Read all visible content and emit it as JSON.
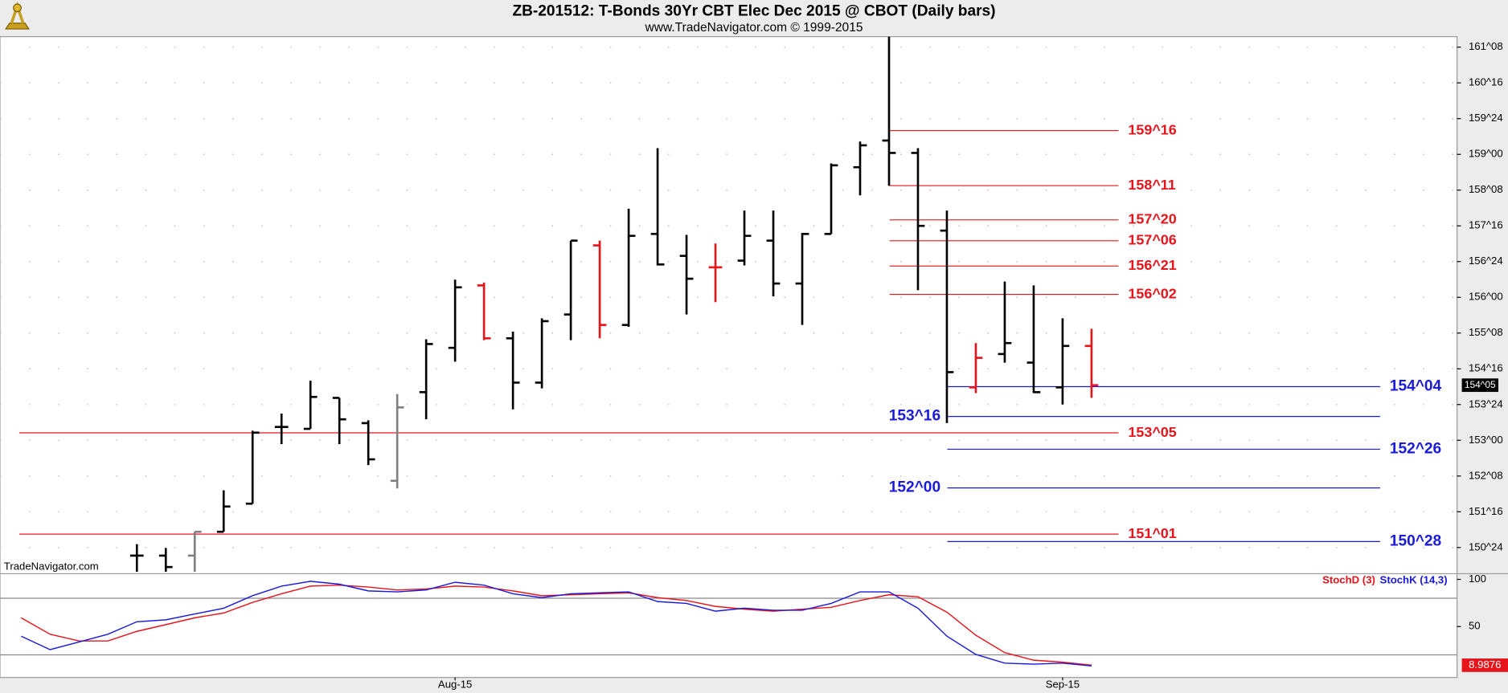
{
  "chart_data": [
    {
      "type": "ohlc",
      "title": "ZB-201512:  T-Bonds 30Yr CBT Elec Dec 2015 @ CBOT  (Daily bars)",
      "subtitle": "www.TradeNavigator.com © 1999-2015",
      "watermark": "TradeNavigator.com",
      "categories": [
        null,
        null,
        null,
        null,
        null,
        null,
        null,
        null,
        null,
        null,
        null,
        null,
        null,
        null,
        null,
        "Aug-15",
        null,
        null,
        null,
        null,
        null,
        null,
        null,
        null,
        null,
        null,
        null,
        null,
        null,
        null,
        null,
        null,
        null,
        null,
        null,
        null,
        "Sep-15",
        null
      ],
      "open": [
        null,
        null,
        null,
        null,
        150.58,
        150.58,
        150.58,
        151.08,
        151.67,
        153.28,
        153.24,
        153.89,
        153.36,
        152.15,
        154.01,
        154.94,
        156.25,
        155.14,
        154.21,
        155.64,
        157.09,
        155.42,
        157.33,
        156.87,
        156.63,
        156.77,
        157.19,
        156.29,
        157.33,
        158.73,
        159.29,
        159.03,
        157.4,
        154.11,
        154.81,
        154.63,
        154.11,
        154.98
      ],
      "high": [
        null,
        null,
        null,
        null,
        150.82,
        150.74,
        151.08,
        151.95,
        153.2,
        153.56,
        154.25,
        153.89,
        153.42,
        153.97,
        155.12,
        156.37,
        156.31,
        155.28,
        155.56,
        157.19,
        157.19,
        157.86,
        159.13,
        157.31,
        157.13,
        157.82,
        157.82,
        157.35,
        158.81,
        159.27,
        161.47,
        159.13,
        157.82,
        155.04,
        156.33,
        156.25,
        155.56,
        155.34
      ],
      "low": [
        null,
        null,
        null,
        null,
        150.24,
        150.24,
        150.24,
        151.08,
        151.67,
        152.92,
        153.24,
        152.92,
        152.48,
        151.99,
        153.44,
        154.65,
        155.1,
        153.65,
        154.09,
        155.1,
        155.14,
        155.38,
        156.67,
        155.64,
        155.9,
        156.67,
        156.02,
        155.42,
        157.33,
        158.14,
        158.34,
        156.15,
        153.36,
        153.99,
        154.63,
        153.99,
        153.75,
        153.89
      ],
      "close": [
        null,
        null,
        null,
        null,
        150.58,
        150.34,
        151.08,
        151.61,
        153.16,
        153.28,
        153.91,
        153.44,
        152.6,
        153.69,
        155.02,
        156.21,
        155.14,
        154.21,
        155.5,
        157.19,
        155.42,
        157.29,
        156.69,
        156.39,
        156.63,
        157.29,
        156.29,
        157.33,
        158.77,
        159.19,
        159.03,
        157.5,
        154.43,
        154.73,
        155.04,
        154.01,
        154.98,
        154.15625
      ],
      "bar_colors": [
        null,
        null,
        null,
        null,
        "#000000",
        "#000000",
        "#808080",
        "#000000",
        "#000000",
        "#000000",
        "#000000",
        "#000000",
        "#000000",
        "#808080",
        "#000000",
        "#000000",
        "#e8141c",
        "#000000",
        "#000000",
        "#000000",
        "#e8141c",
        "#000000",
        "#000000",
        "#000000",
        "#e8141c",
        "#000000",
        "#000000",
        "#000000",
        "#000000",
        "#000000",
        "#000000",
        "#000000",
        "#000000",
        "#e8141c",
        "#000000",
        "#000000",
        "#000000",
        "#e8141c"
      ],
      "last_price": {
        "value": 154.15625,
        "label": "154^05"
      },
      "ylim": [
        150.2,
        161.47
      ],
      "yticks": [
        {
          "value": 161.25,
          "label": "161^08"
        },
        {
          "value": 160.5,
          "label": "160^16"
        },
        {
          "value": 159.75,
          "label": "159^24"
        },
        {
          "value": 159,
          "label": "159^00"
        },
        {
          "value": 158.25,
          "label": "158^08"
        },
        {
          "value": 157.5,
          "label": "157^16"
        },
        {
          "value": 156.75,
          "label": "156^24"
        },
        {
          "value": 156,
          "label": "156^00"
        },
        {
          "value": 155.25,
          "label": "155^08"
        },
        {
          "value": 154.5,
          "label": "154^16"
        },
        {
          "value": 153.75,
          "label": "153^24"
        },
        {
          "value": 153,
          "label": "153^00"
        },
        {
          "value": 152.25,
          "label": "152^08"
        },
        {
          "value": 151.5,
          "label": "151^16"
        },
        {
          "value": 150.75,
          "label": "150^24"
        }
      ],
      "grid": true,
      "levels": [
        {
          "value": 159.5,
          "label": "159^16",
          "color": "#e8141c"
        },
        {
          "value": 158.34375,
          "label": "158^11",
          "color": "#e8141c"
        },
        {
          "value": 157.625,
          "label": "157^20",
          "color": "#e8141c"
        },
        {
          "value": 157.1875,
          "label": "157^06",
          "color": "#e8141c"
        },
        {
          "value": 156.65625,
          "label": "156^21",
          "color": "#e8141c"
        },
        {
          "value": 156.0625,
          "label": "156^02",
          "color": "#e8141c"
        },
        {
          "value": 153.15625,
          "label": "153^05",
          "color": "#e8141c"
        },
        {
          "value": 151.03125,
          "label": "151^01",
          "color": "#e8141c"
        },
        {
          "value": 154.125,
          "label": "154^04",
          "color": "#1a1adc"
        },
        {
          "value": 153.5,
          "label": "153^16",
          "color": "#1a1adc"
        },
        {
          "value": 152.8125,
          "label": "152^26",
          "color": "#1a1adc"
        },
        {
          "value": 152,
          "label": "152^00",
          "color": "#1a1adc"
        },
        {
          "value": 150.875,
          "label": "150^28",
          "color": "#1a1adc"
        }
      ]
    },
    {
      "type": "line",
      "ylim": [
        -4,
        106
      ],
      "yticks": [
        100,
        50
      ],
      "hlines": [
        80,
        20
      ],
      "series": [
        {
          "name": "StochD (3)",
          "color": "#e8141c",
          "values": [
            59.2,
            41.8,
            34.7,
            34.7,
            44.9,
            52,
            59.2,
            64.3,
            75.5,
            84.7,
            92.9,
            93.9,
            91.8,
            88.8,
            89.8,
            92.9,
            91.8,
            87.8,
            82.7,
            83.7,
            84.7,
            85.7,
            80.6,
            77.6,
            71.4,
            68.4,
            66.3,
            68.4,
            70.4,
            77.6,
            83.7,
            81.6,
            65.3,
            40.8,
            22.4,
            14.3,
            12.2,
            8.9876
          ],
          "value_labels": [
            null,
            null,
            null,
            null,
            null,
            null,
            null,
            null,
            null,
            null,
            null,
            null,
            null,
            null,
            null,
            null,
            null,
            null,
            null,
            null,
            null,
            null,
            null,
            null,
            null,
            null,
            null,
            null,
            null,
            null,
            null,
            null,
            null,
            null,
            null,
            null,
            null,
            "8.9876"
          ]
        },
        {
          "name": "StochK (14,3)",
          "color": "#1a1adc",
          "values": [
            39.8,
            25.5,
            33.7,
            41.8,
            55.1,
            57.1,
            63.3,
            69.4,
            82.7,
            92.9,
            98,
            94.9,
            87.8,
            86.7,
            88.8,
            96.9,
            93.9,
            84.7,
            80.6,
            84.7,
            85.7,
            86.7,
            76.5,
            74.5,
            66.3,
            69.4,
            67.3,
            67.3,
            74.5,
            86.7,
            86.7,
            69.4,
            39.8,
            20.4,
            11.2,
            10.2,
            11.2,
            8.2
          ]
        }
      ]
    }
  ]
}
